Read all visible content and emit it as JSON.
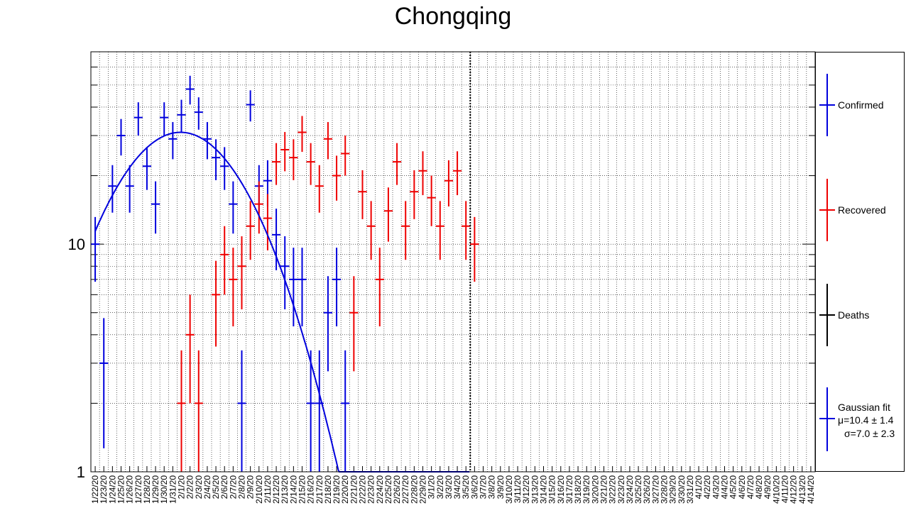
{
  "chart_data": {
    "type": "scatter",
    "title": "Chongqing",
    "yscale": "log",
    "ylim": [
      1,
      70
    ],
    "ytick_labels": [
      "1",
      "10"
    ],
    "grid": true,
    "legend_position": "right",
    "x_tick_labels": [
      "1/22/20",
      "1/23/20",
      "1/24/20",
      "1/25/20",
      "1/26/20",
      "1/27/20",
      "1/28/20",
      "1/29/20",
      "1/30/20",
      "1/31/20",
      "2/1/20",
      "2/2/20",
      "2/3/20",
      "2/4/20",
      "2/5/20",
      "2/6/20",
      "2/7/20",
      "2/8/20",
      "2/9/20",
      "2/10/20",
      "2/11/20",
      "2/12/20",
      "2/13/20",
      "2/14/20",
      "2/15/20",
      "2/16/20",
      "2/17/20",
      "2/18/20",
      "2/19/20",
      "2/20/20",
      "2/21/20",
      "2/22/20",
      "2/23/20",
      "2/24/20",
      "2/25/20",
      "2/26/20",
      "2/27/20",
      "2/28/20",
      "2/29/20",
      "3/1/20",
      "3/2/20",
      "3/3/20",
      "3/4/20",
      "3/5/20",
      "3/6/20",
      "3/7/20",
      "3/8/20",
      "3/9/20",
      "3/10/20",
      "3/11/20",
      "3/12/20",
      "3/13/20",
      "3/14/20",
      "3/15/20",
      "3/16/20",
      "3/17/20",
      "3/18/20",
      "3/19/20",
      "3/20/20",
      "3/21/20",
      "3/22/20",
      "3/23/20",
      "3/24/20",
      "3/25/20",
      "3/26/20",
      "3/27/20",
      "3/28/20",
      "3/29/20",
      "3/30/20",
      "3/31/20",
      "4/1/20",
      "4/2/20",
      "4/3/20",
      "4/4/20",
      "4/5/20",
      "4/6/20",
      "4/7/20",
      "4/8/20",
      "4/9/20",
      "4/10/20",
      "4/11/20",
      "4/12/20",
      "4/13/20",
      "4/14/20"
    ],
    "current_date_marker": "3/5/20",
    "series": [
      {
        "name": "Confirmed",
        "color": "#0000dd",
        "points": [
          {
            "x": "1/22/20",
            "y": 10
          },
          {
            "x": "1/23/20",
            "y": 3
          },
          {
            "x": "1/24/20",
            "y": 18
          },
          {
            "x": "1/25/20",
            "y": 30
          },
          {
            "x": "1/26/20",
            "y": 18
          },
          {
            "x": "1/27/20",
            "y": 36
          },
          {
            "x": "1/28/20",
            "y": 22
          },
          {
            "x": "1/29/20",
            "y": 15
          },
          {
            "x": "1/30/20",
            "y": 36
          },
          {
            "x": "1/31/20",
            "y": 29
          },
          {
            "x": "2/1/20",
            "y": 37
          },
          {
            "x": "2/2/20",
            "y": 48
          },
          {
            "x": "2/3/20",
            "y": 38
          },
          {
            "x": "2/4/20",
            "y": 29
          },
          {
            "x": "2/5/20",
            "y": 24
          },
          {
            "x": "2/6/20",
            "y": 22
          },
          {
            "x": "2/7/20",
            "y": 15
          },
          {
            "x": "2/8/20",
            "y": 2
          },
          {
            "x": "2/9/20",
            "y": 41
          },
          {
            "x": "2/10/20",
            "y": 18
          },
          {
            "x": "2/11/20",
            "y": 19
          },
          {
            "x": "2/12/20",
            "y": 11
          },
          {
            "x": "2/13/20",
            "y": 8
          },
          {
            "x": "2/14/20",
            "y": 7
          },
          {
            "x": "2/15/20",
            "y": 7
          },
          {
            "x": "2/16/20",
            "y": 2
          },
          {
            "x": "2/17/20",
            "y": 2
          },
          {
            "x": "2/18/20",
            "y": 5
          },
          {
            "x": "2/19/20",
            "y": 7
          },
          {
            "x": "2/20/20",
            "y": 2
          }
        ]
      },
      {
        "name": "Recovered",
        "color": "#ee0000",
        "points": [
          {
            "x": "2/1/20",
            "y": 2
          },
          {
            "x": "2/2/20",
            "y": 4
          },
          {
            "x": "2/3/20",
            "y": 2
          },
          {
            "x": "2/5/20",
            "y": 6
          },
          {
            "x": "2/6/20",
            "y": 9
          },
          {
            "x": "2/7/20",
            "y": 7
          },
          {
            "x": "2/8/20",
            "y": 8
          },
          {
            "x": "2/9/20",
            "y": 12
          },
          {
            "x": "2/10/20",
            "y": 15
          },
          {
            "x": "2/11/20",
            "y": 13
          },
          {
            "x": "2/12/20",
            "y": 23
          },
          {
            "x": "2/13/20",
            "y": 26
          },
          {
            "x": "2/14/20",
            "y": 24
          },
          {
            "x": "2/15/20",
            "y": 31
          },
          {
            "x": "2/16/20",
            "y": 23
          },
          {
            "x": "2/17/20",
            "y": 18
          },
          {
            "x": "2/18/20",
            "y": 29
          },
          {
            "x": "2/19/20",
            "y": 20
          },
          {
            "x": "2/20/20",
            "y": 25
          },
          {
            "x": "2/21/20",
            "y": 5
          },
          {
            "x": "2/22/20",
            "y": 17
          },
          {
            "x": "2/23/20",
            "y": 12
          },
          {
            "x": "2/24/20",
            "y": 7
          },
          {
            "x": "2/25/20",
            "y": 14
          },
          {
            "x": "2/26/20",
            "y": 23
          },
          {
            "x": "2/27/20",
            "y": 12
          },
          {
            "x": "2/28/20",
            "y": 17
          },
          {
            "x": "2/29/20",
            "y": 21
          },
          {
            "x": "3/1/20",
            "y": 16
          },
          {
            "x": "3/2/20",
            "y": 12
          },
          {
            "x": "3/3/20",
            "y": 19
          },
          {
            "x": "3/4/20",
            "y": 21
          },
          {
            "x": "3/5/20",
            "y": 12
          },
          {
            "x": "3/6/20",
            "y": 10
          }
        ]
      },
      {
        "name": "Deaths",
        "color": "#000000",
        "points": []
      }
    ],
    "fit": {
      "name": "Gaussian fit",
      "color": "#0000dd",
      "mu": 10.4,
      "mu_err": 1.4,
      "sigma": 7.0,
      "sigma_err": 2.3,
      "amplitude": 31,
      "x_start_index": 0.5,
      "x_end_index": 44,
      "mu_text": "μ=10.4 ± 1.4",
      "sigma_text": "σ=7.0 ± 2.3"
    }
  }
}
